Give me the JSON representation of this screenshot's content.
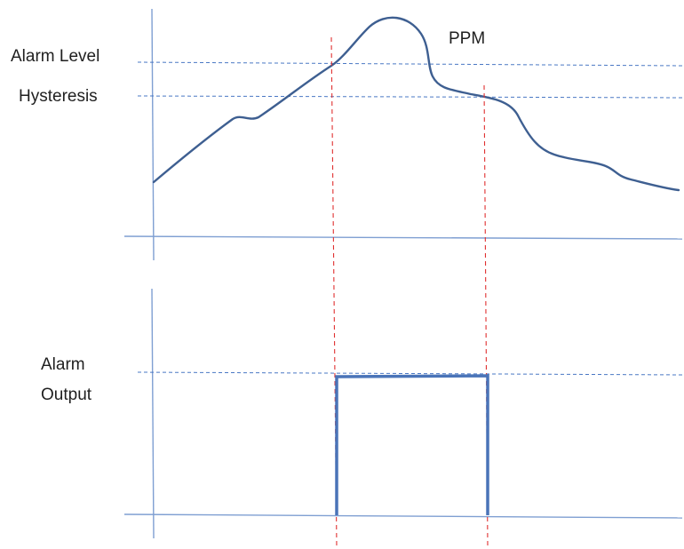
{
  "labels": {
    "alarm_level": "Alarm Level",
    "hysteresis": "Hysteresis",
    "ppm": "PPM",
    "alarm_output_line1": "Alarm",
    "alarm_output_line2": "Output"
  },
  "colors": {
    "curve": "#3e5f91",
    "axes": "#7f9fd2",
    "level_dashes": "#4a78c4",
    "trigger_dashes": "#e03030",
    "output_pulse": "#4a74b8"
  }
}
